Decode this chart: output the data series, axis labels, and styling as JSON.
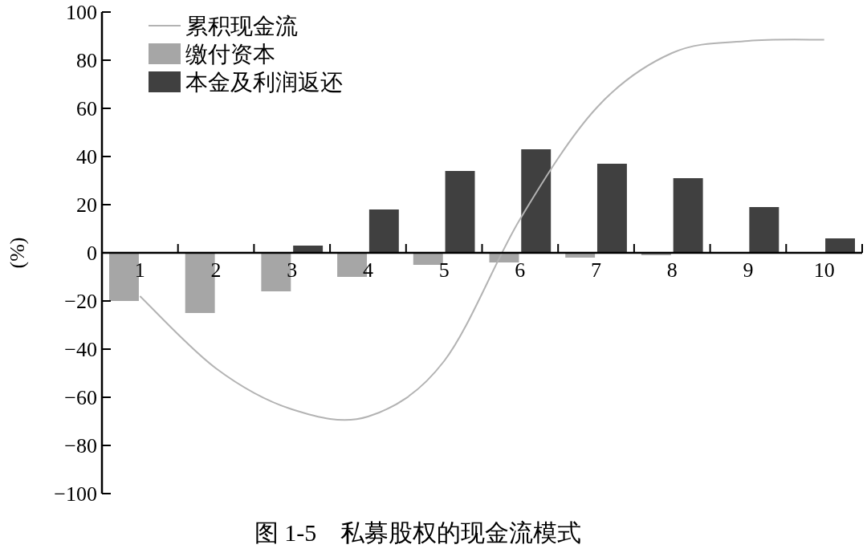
{
  "chart_data": {
    "type": "bar",
    "title": "图 1-5　私募股权的现金流模式",
    "ylabel": "(%)",
    "categories": [
      "1",
      "2",
      "3",
      "4",
      "5",
      "6",
      "7",
      "8",
      "9",
      "10"
    ],
    "series": [
      {
        "name": "累积现金流",
        "type": "line",
        "color": "#b3b3b3",
        "values": [
          -18,
          -48,
          -65,
          -68,
          -45,
          14,
          60,
          83,
          88,
          88.5
        ]
      },
      {
        "name": "缴付资本",
        "color": "#a6a6a6",
        "values": [
          -20,
          -25,
          -16,
          -10,
          -5,
          -4,
          -2,
          -1,
          0,
          0
        ]
      },
      {
        "name": "本金及利润返还",
        "color": "#404040",
        "values": [
          0,
          0,
          3,
          18,
          34,
          43,
          37,
          31,
          19,
          6
        ]
      }
    ],
    "ylim": [
      -100,
      100
    ],
    "yticks": [
      -100,
      -80,
      -60,
      -40,
      -20,
      0,
      20,
      40,
      60,
      80,
      100
    ],
    "legend": "top left",
    "grid": false,
    "marker": "none"
  }
}
